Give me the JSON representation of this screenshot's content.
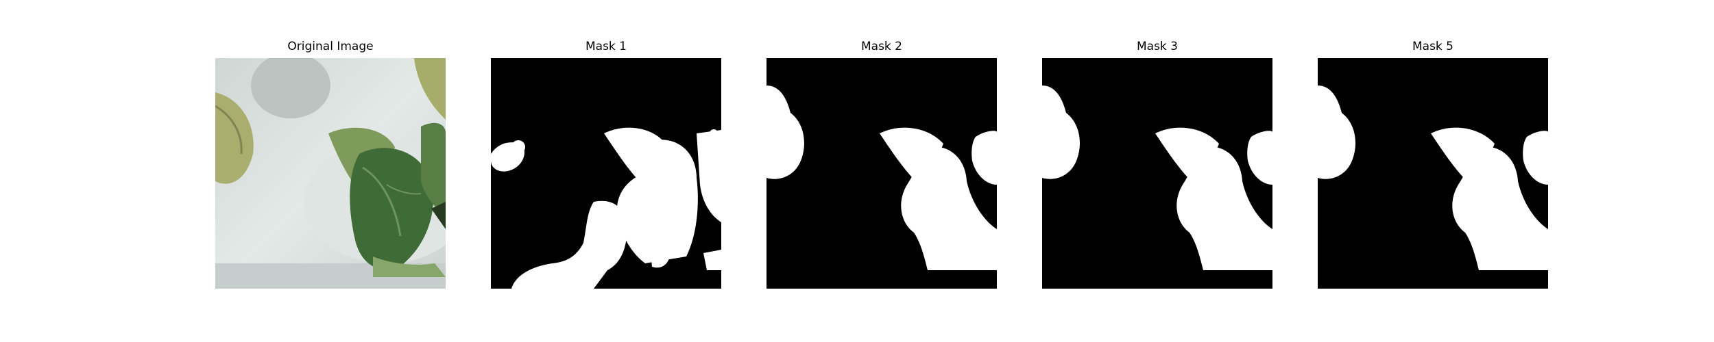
{
  "figure": {
    "panels": [
      {
        "title": "Original Image",
        "content": "photo"
      },
      {
        "title": "Mask 1",
        "content": "mask"
      },
      {
        "title": "Mask 2",
        "content": "mask"
      },
      {
        "title": "Mask 3",
        "content": "mask"
      },
      {
        "title": "Mask 5",
        "content": "mask"
      }
    ]
  }
}
